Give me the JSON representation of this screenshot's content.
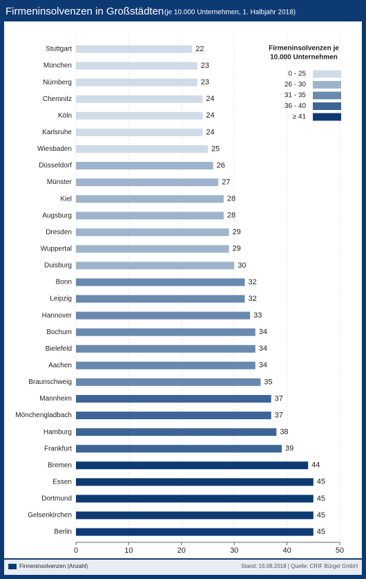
{
  "chart_data": {
    "type": "bar",
    "title": "Firmeninsolvenzen in Großstädten",
    "subtitle": "(je 10.000 Unternehmen, 1. Halbjahr 2018)",
    "categories": [
      "Stuttgart",
      "München",
      "Nürnberg",
      "Chemnitz",
      "Köln",
      "Karlsruhe",
      "Wiesbaden",
      "Düsseldorf",
      "Münster",
      "Kiel",
      "Augsburg",
      "Dresden",
      "Wuppertal",
      "Duisburg",
      "Bonn",
      "Leipzig",
      "Hannover",
      "Bochum",
      "Bielefeld",
      "Aachen",
      "Braunschweig",
      "Mannheim",
      "Mönchengladbach",
      "Hamburg",
      "Frankfurt",
      "Bremen",
      "Essen",
      "Dortmund",
      "Gelsenkirchen",
      "Berlin"
    ],
    "values": [
      22,
      23,
      23,
      24,
      24,
      24,
      25,
      26,
      27,
      28,
      28,
      29,
      29,
      30,
      32,
      32,
      33,
      34,
      34,
      34,
      35,
      37,
      37,
      38,
      39,
      44,
      45,
      45,
      45,
      45
    ],
    "colors": [
      "#d0dbe8",
      "#d0dbe8",
      "#d0dbe8",
      "#d0dbe8",
      "#d0dbe8",
      "#d0dbe8",
      "#d0dbe8",
      "#9fb4cc",
      "#9fb4cc",
      "#9fb4cc",
      "#9fb4cc",
      "#9fb4cc",
      "#9fb4cc",
      "#9fb4cc",
      "#6a89b0",
      "#6a89b0",
      "#6a89b0",
      "#6a89b0",
      "#6a89b0",
      "#6a89b0",
      "#6a89b0",
      "#3d6496",
      "#3d6496",
      "#3d6496",
      "#3d6496",
      "#0d3a73",
      "#0d3a73",
      "#0d3a73",
      "#0d3a73",
      "#0d3a73"
    ],
    "series_name": "Firmeninsolvenzen (Anzahl)",
    "series_color": "#0d3a73",
    "xlim": [
      0,
      50
    ],
    "xticks": [
      0,
      10,
      20,
      30,
      40,
      50
    ],
    "grid": true,
    "legend": {
      "title": [
        "Firmeninsolvenzen je",
        "10.000 Unternehmen"
      ],
      "items": [
        {
          "label": "0 - 25",
          "color": "#d0dbe8"
        },
        {
          "label": "26 - 30",
          "color": "#9fb4cc"
        },
        {
          "label": "31 - 35",
          "color": "#6a89b0"
        },
        {
          "label": "36 - 40",
          "color": "#3d6496"
        },
        {
          "label": "≥ 41",
          "color": "#0d3a73"
        }
      ]
    },
    "source": "Stand: 16.08.2018 | Quelle: CRIF Bürgel GmbH"
  }
}
